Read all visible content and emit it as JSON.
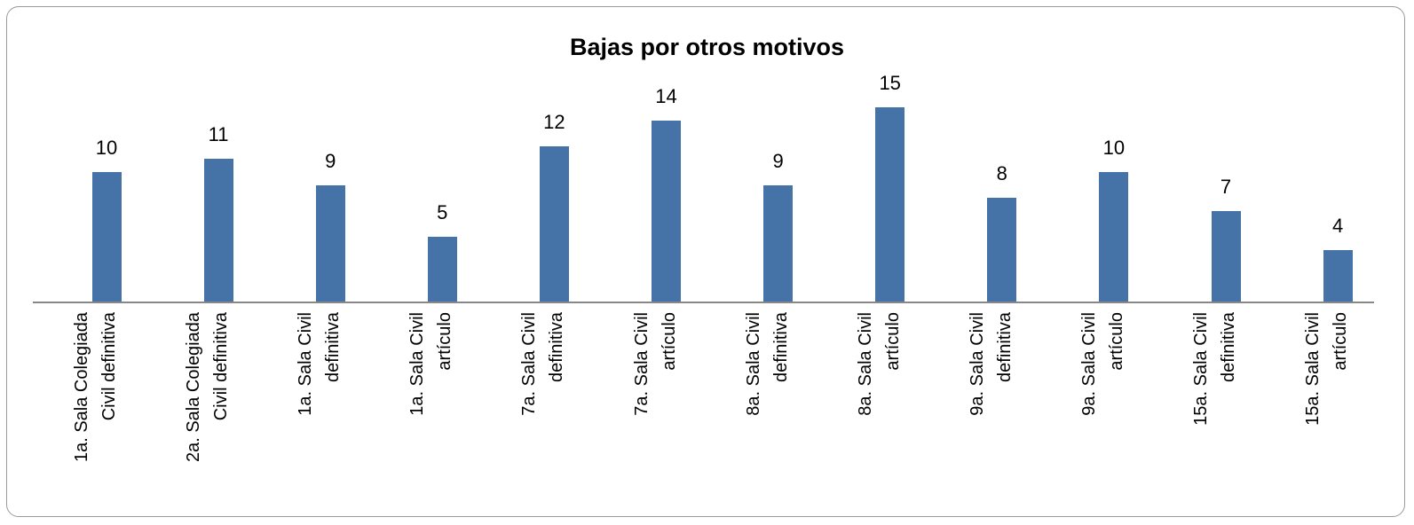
{
  "chart_data": {
    "type": "bar",
    "title": "Bajas por otros motivos",
    "categories": [
      "1a. Sala Colegiada\nCivil definitiva",
      "2a. Sala Colegiada\nCivil definitiva",
      "1a. Sala Civil\ndefinitiva",
      "1a. Sala Civil\nartículo",
      "7a. Sala Civil\ndefinitiva",
      "7a. Sala Civil\nartículo",
      "8a. Sala Civil\ndefinitiva",
      "8a. Sala Civil\nartículo",
      "9a. Sala Civil\ndefinitiva",
      "9a. Sala Civil\nartículo",
      "15a. Sala Civil\ndefinitiva",
      "15a. Sala Civil\nartículo"
    ],
    "values": [
      10,
      11,
      9,
      5,
      12,
      14,
      9,
      15,
      8,
      10,
      7,
      4
    ],
    "color": "#4572a7",
    "ylim": [
      0,
      16
    ]
  }
}
